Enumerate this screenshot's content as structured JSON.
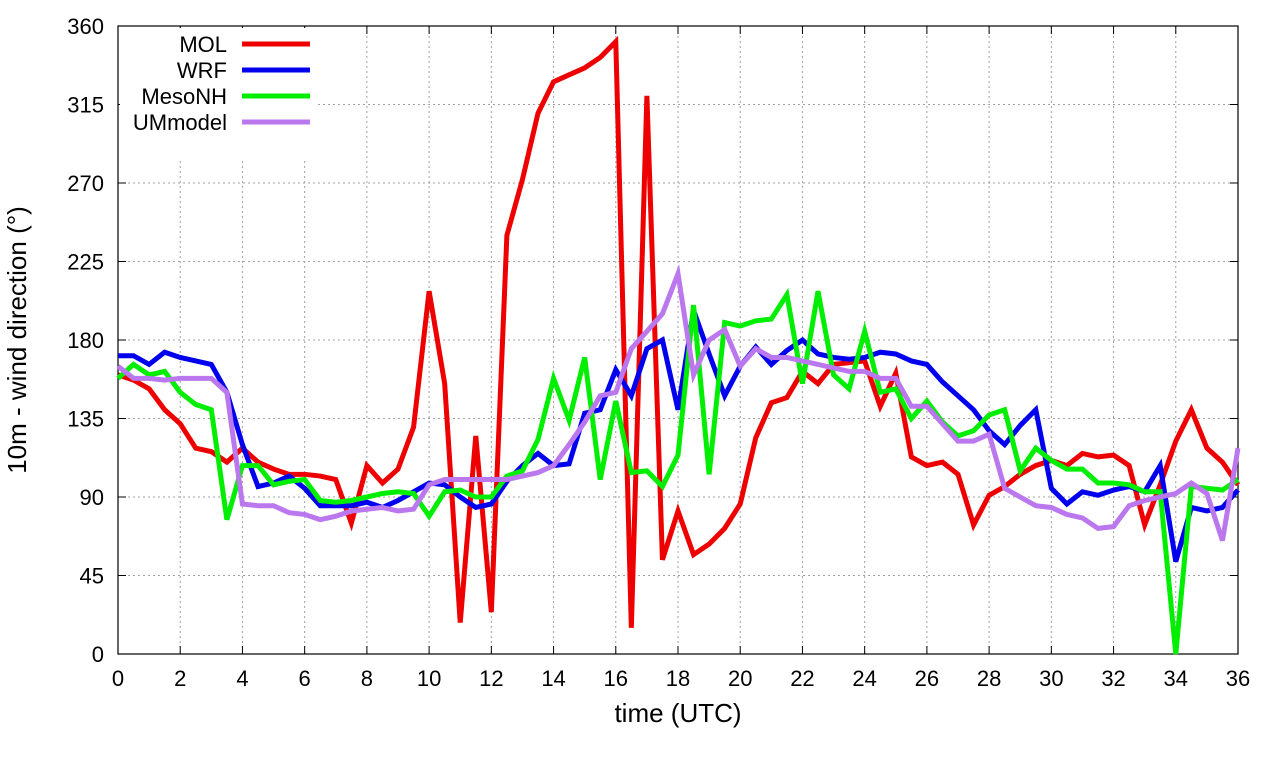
{
  "chart_data": {
    "type": "line",
    "title": "",
    "xlabel": "time (UTC)",
    "ylabel": "10m - wind direction (°)",
    "xlim": [
      0,
      36
    ],
    "ylim": [
      0,
      360
    ],
    "xticks": [
      0,
      2,
      4,
      6,
      8,
      10,
      12,
      14,
      16,
      18,
      20,
      22,
      24,
      26,
      28,
      30,
      32,
      34,
      36
    ],
    "yticks": [
      0,
      45,
      90,
      135,
      180,
      225,
      270,
      315,
      360
    ],
    "grid": true,
    "legend_position": "top-left",
    "series": [
      {
        "name": "MOL",
        "color": "#ee0000",
        "x": [
          0,
          0.5,
          1,
          1.5,
          2,
          2.5,
          3,
          3.5,
          4,
          4.5,
          5,
          5.5,
          6,
          6.5,
          7,
          7.5,
          8,
          8.5,
          9,
          9.5,
          10,
          10.5,
          11,
          11.5,
          12,
          12.5,
          13,
          13.5,
          14,
          14.5,
          15,
          15.5,
          16,
          16.5,
          17,
          17.5,
          18,
          18.5,
          19,
          19.5,
          20,
          20.5,
          21,
          21.5,
          22,
          22.5,
          23,
          23.5,
          24,
          24.5,
          25,
          25.5,
          26,
          26.5,
          27,
          27.5,
          28,
          28.5,
          29,
          29.5,
          30,
          30.5,
          31,
          31.5,
          32,
          32.5,
          33,
          33.5,
          34,
          34.5,
          35,
          35.5,
          36
        ],
        "values": [
          160,
          157,
          152,
          140,
          132,
          118,
          116,
          110,
          118,
          110,
          106,
          103,
          103,
          102,
          100,
          75,
          108,
          98,
          106,
          130,
          208,
          155,
          18,
          125,
          24,
          240,
          272,
          310,
          328,
          332,
          336,
          342,
          351,
          15,
          320,
          54,
          82,
          57,
          63,
          72,
          86,
          124,
          144,
          147,
          162,
          155,
          166,
          167,
          168,
          142,
          161,
          113,
          108,
          110,
          103,
          74,
          91,
          96,
          103,
          108,
          111,
          108,
          115,
          113,
          114,
          108,
          74,
          97,
          122,
          140,
          118,
          110,
          97
        ],
        "line_width": 5
      },
      {
        "name": "WRF",
        "color": "#0000ee",
        "x": [
          0,
          0.5,
          1,
          1.5,
          2,
          2.5,
          3,
          3.5,
          4,
          4.5,
          5,
          5.5,
          6,
          6.5,
          7,
          7.5,
          8,
          8.5,
          9,
          9.5,
          10,
          10.5,
          11,
          11.5,
          12,
          12.5,
          13,
          13.5,
          14,
          14.5,
          15,
          15.5,
          16,
          16.5,
          17,
          17.5,
          18,
          18.5,
          19,
          19.5,
          20,
          20.5,
          21,
          21.5,
          22,
          22.5,
          23,
          23.5,
          24,
          24.5,
          25,
          25.5,
          26,
          26.5,
          27,
          27.5,
          28,
          28.5,
          29,
          29.5,
          30,
          30.5,
          31,
          31.5,
          32,
          32.5,
          33,
          33.5,
          34,
          34.5,
          35,
          35.5,
          36
        ],
        "values": [
          171,
          171,
          166,
          173,
          170,
          168,
          166,
          150,
          120,
          96,
          98,
          102,
          95,
          85,
          85,
          85,
          87,
          84,
          88,
          93,
          98,
          97,
          90,
          84,
          86,
          99,
          108,
          115,
          108,
          109,
          138,
          140,
          163,
          148,
          175,
          180,
          140,
          197,
          172,
          148,
          165,
          176,
          166,
          174,
          180,
          172,
          170,
          169,
          170,
          173,
          172,
          168,
          166,
          156,
          148,
          140,
          128,
          120,
          131,
          140,
          95,
          86,
          93,
          91,
          94,
          96,
          93,
          108,
          53,
          84,
          82,
          84,
          94
        ],
        "line_width": 5
      },
      {
        "name": "MesoNH",
        "color": "#00ee00",
        "x": [
          0,
          0.5,
          1,
          1.5,
          2,
          2.5,
          3,
          3.5,
          4,
          4.5,
          5,
          5.5,
          6,
          6.5,
          7,
          7.5,
          8,
          8.5,
          9,
          9.5,
          10,
          10.5,
          11,
          11.5,
          12,
          12.5,
          13,
          13.5,
          14,
          14.5,
          15,
          15.5,
          16,
          16.5,
          17,
          17.5,
          18,
          18.5,
          19,
          19.5,
          20,
          20.5,
          21,
          21.5,
          22,
          22.5,
          23,
          23.5,
          24,
          24.5,
          25,
          25.5,
          26,
          26.5,
          27,
          27.5,
          28,
          28.5,
          29,
          29.5,
          30,
          30.5,
          31,
          31.5,
          32,
          32.5,
          33,
          33.5,
          34,
          34.5,
          35,
          35.5,
          36
        ],
        "values": [
          158,
          166,
          160,
          162,
          150,
          143,
          140,
          77,
          108,
          108,
          97,
          99,
          100,
          88,
          87,
          88,
          90,
          92,
          93,
          92,
          79,
          93,
          94,
          90,
          90,
          102,
          105,
          123,
          158,
          134,
          170,
          100,
          145,
          104,
          105,
          96,
          114,
          200,
          103,
          190,
          188,
          191,
          192,
          206,
          155,
          208,
          160,
          152,
          185,
          150,
          152,
          135,
          145,
          133,
          125,
          128,
          137,
          140,
          105,
          118,
          111,
          106,
          106,
          98,
          98,
          97,
          93,
          93,
          0,
          96,
          95,
          94,
          100
        ],
        "line_width": 5
      },
      {
        "name": "UMmodel",
        "color": "#bb77ee",
        "x": [
          0,
          0.5,
          1,
          1.5,
          2,
          2.5,
          3,
          3.5,
          4,
          4.5,
          5,
          5.5,
          6,
          6.5,
          7,
          7.5,
          8,
          8.5,
          9,
          9.5,
          10,
          10.5,
          11,
          11.5,
          12,
          12.5,
          13,
          13.5,
          14,
          14.5,
          15,
          15.5,
          16,
          16.5,
          17,
          17.5,
          18,
          18.5,
          19,
          19.5,
          20,
          20.5,
          21,
          21.5,
          22,
          22.5,
          23,
          23.5,
          24,
          24.5,
          25,
          25.5,
          26,
          26.5,
          27,
          27.5,
          28,
          28.5,
          29,
          29.5,
          30,
          30.5,
          31,
          31.5,
          32,
          32.5,
          33,
          33.5,
          34,
          34.5,
          35,
          35.5,
          36
        ],
        "values": [
          165,
          158,
          158,
          157,
          158,
          158,
          158,
          150,
          86,
          85,
          85,
          81,
          80,
          77,
          79,
          82,
          83,
          84,
          82,
          83,
          97,
          100,
          100,
          100,
          100,
          100,
          102,
          104,
          108,
          120,
          133,
          148,
          150,
          175,
          185,
          195,
          218,
          160,
          180,
          186,
          165,
          175,
          170,
          170,
          168,
          166,
          164,
          162,
          162,
          158,
          158,
          142,
          142,
          132,
          122,
          122,
          126,
          95,
          90,
          85,
          84,
          80,
          78,
          72,
          73,
          85,
          88,
          90,
          92,
          98,
          92,
          65,
          118
        ],
        "line_width": 5
      }
    ]
  }
}
